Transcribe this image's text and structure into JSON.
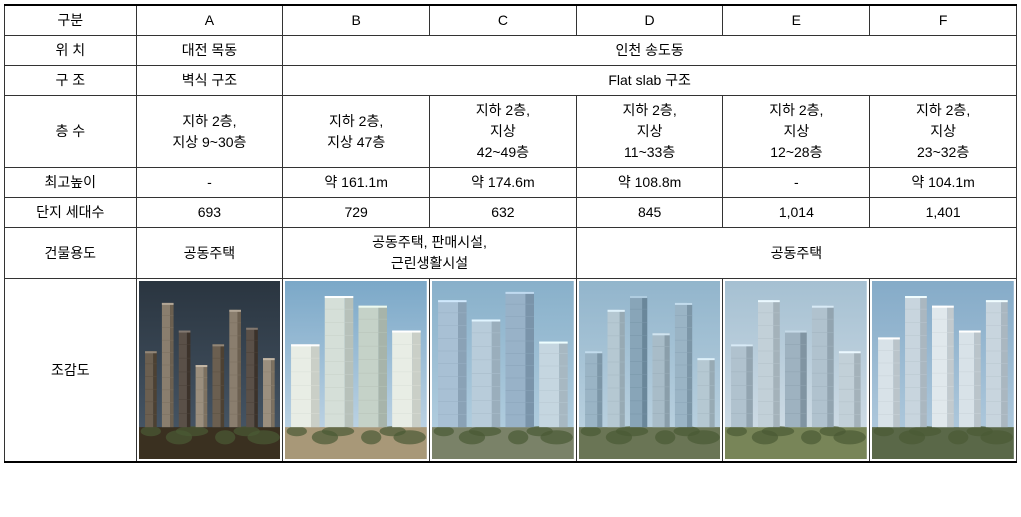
{
  "headers": {
    "label": "구분",
    "a": "A",
    "b": "B",
    "c": "C",
    "d": "D",
    "e": "E",
    "f": "F"
  },
  "rows": {
    "location": {
      "label": "위 치",
      "a": "대전 목동",
      "bcdef": "인천 송도동"
    },
    "structure": {
      "label": "구 조",
      "a": "벽식 구조",
      "bcdef": "Flat slab 구조"
    },
    "floors": {
      "label": "층 수",
      "a": "지하 2층,\n지상 9~30층",
      "b": "지하 2층,\n지상 47층",
      "c": "지하 2층,\n지상\n42~49층",
      "d": "지하 2층,\n지상\n11~33층",
      "e": "지하 2층,\n지상\n12~28층",
      "f": "지하 2층,\n지상\n23~32층"
    },
    "maxHeight": {
      "label": "최고높이",
      "a": "-",
      "b": "약 161.1m",
      "c": "약 174.6m",
      "d": "약 108.8m",
      "e": "-",
      "f": "약 104.1m"
    },
    "units": {
      "label": "단지 세대수",
      "a": "693",
      "b": "729",
      "c": "632",
      "d": "845",
      "e": "1,014",
      "f": "1,401"
    },
    "usage": {
      "label": "건물용도",
      "a": "공동주택",
      "bc": "공동주택, 판매시설,\n근린생활시설",
      "def": "공동주택"
    },
    "render": {
      "label": "조감도"
    }
  },
  "renders": {
    "a": {
      "sky": "#4a5a6a",
      "skyTop": "#2a3540",
      "ground": "#3a3020",
      "colors": [
        "#6b5f50",
        "#8a7e6e",
        "#5a5048",
        "#9b8f7e"
      ],
      "heights": [
        0.55,
        0.9,
        0.7,
        0.45,
        0.6,
        0.85,
        0.72,
        0.5
      ]
    },
    "b": {
      "sky": "#c8dae8",
      "skyTop": "#7ba8c8",
      "ground": "#a89878",
      "colors": [
        "#e8ede5",
        "#d5dfd8",
        "#c5d2c8"
      ],
      "heights": [
        0.6,
        0.95,
        0.88,
        0.7
      ]
    },
    "c": {
      "sky": "#b8d2e2",
      "skyTop": "#88b0ca",
      "ground": "#7a8268",
      "colors": [
        "#a8c0d4",
        "#b8ccda",
        "#98b2c8",
        "#c5d6e0"
      ],
      "heights": [
        0.92,
        0.78,
        0.98,
        0.62
      ]
    },
    "d": {
      "sky": "#c0d5e2",
      "skyTop": "#92b5cc",
      "ground": "#6a7555",
      "colors": [
        "#9ab4c5",
        "#b5c8d2",
        "#88a5b8",
        "#a8bcc8"
      ],
      "heights": [
        0.55,
        0.85,
        0.95,
        0.68,
        0.9,
        0.5
      ]
    },
    "e": {
      "sky": "#d5e0e8",
      "skyTop": "#a5c0d2",
      "ground": "#788558",
      "colors": [
        "#b0c2ce",
        "#c2d0d8",
        "#9eb2c0"
      ],
      "heights": [
        0.6,
        0.92,
        0.7,
        0.88,
        0.55
      ]
    },
    "f": {
      "sky": "#b5cddf",
      "skyTop": "#85abc8",
      "ground": "#5a6848",
      "colors": [
        "#d8e2e8",
        "#c8d5de",
        "#e0e8ec"
      ],
      "heights": [
        0.65,
        0.95,
        0.88,
        0.7,
        0.92
      ]
    }
  }
}
